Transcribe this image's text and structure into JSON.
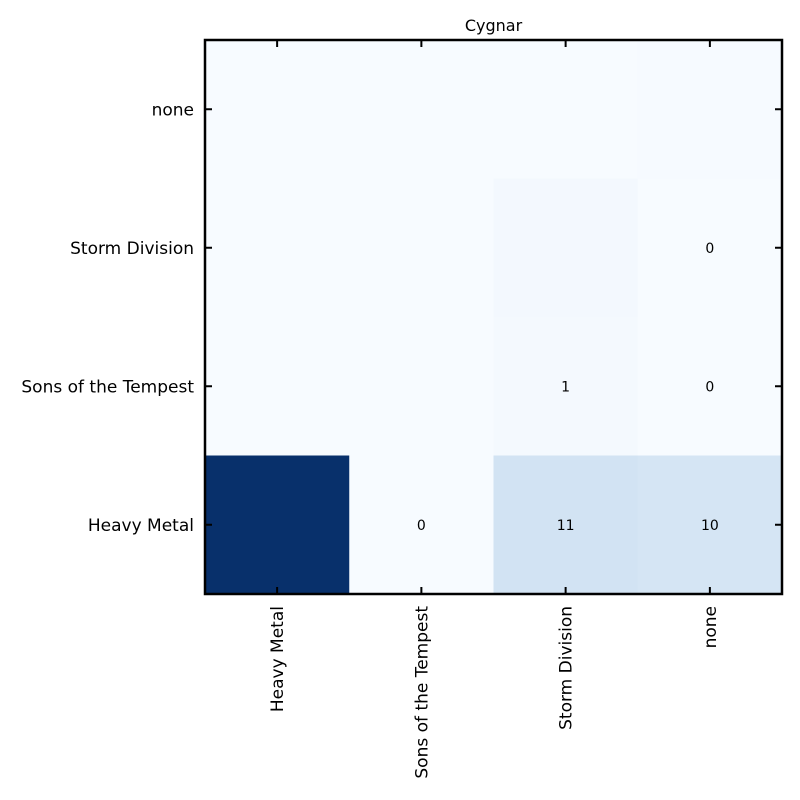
{
  "chart_data": {
    "type": "heatmap",
    "title": "Cygnar",
    "xlabel": "",
    "ylabel": "",
    "x_categories": [
      "Heavy Metal",
      "Sons of the Tempest",
      "Storm Division",
      "none"
    ],
    "y_categories_top_to_bottom": [
      "none",
      "Storm Division",
      "Sons of the Tempest",
      "Heavy Metal"
    ],
    "values": [
      [
        0,
        0,
        0,
        0.35
      ],
      [
        0,
        0,
        1.3,
        0
      ],
      [
        0,
        0,
        1,
        0
      ],
      [
        59,
        0,
        11,
        10
      ]
    ],
    "cell_labels": [
      [
        "",
        "",
        "",
        ""
      ],
      [
        "",
        "",
        "",
        "0"
      ],
      [
        "",
        "",
        "1",
        "0"
      ],
      [
        "",
        "0",
        "11",
        "10"
      ]
    ],
    "colormap": [
      "#f7fbff",
      "#deebf7",
      "#c6dbef",
      "#9ecae1",
      "#6baed6",
      "#4292c6",
      "#2171b5",
      "#08519c",
      "#08306b"
    ],
    "value_range": [
      0,
      59
    ],
    "grid": false,
    "legend": "none"
  }
}
